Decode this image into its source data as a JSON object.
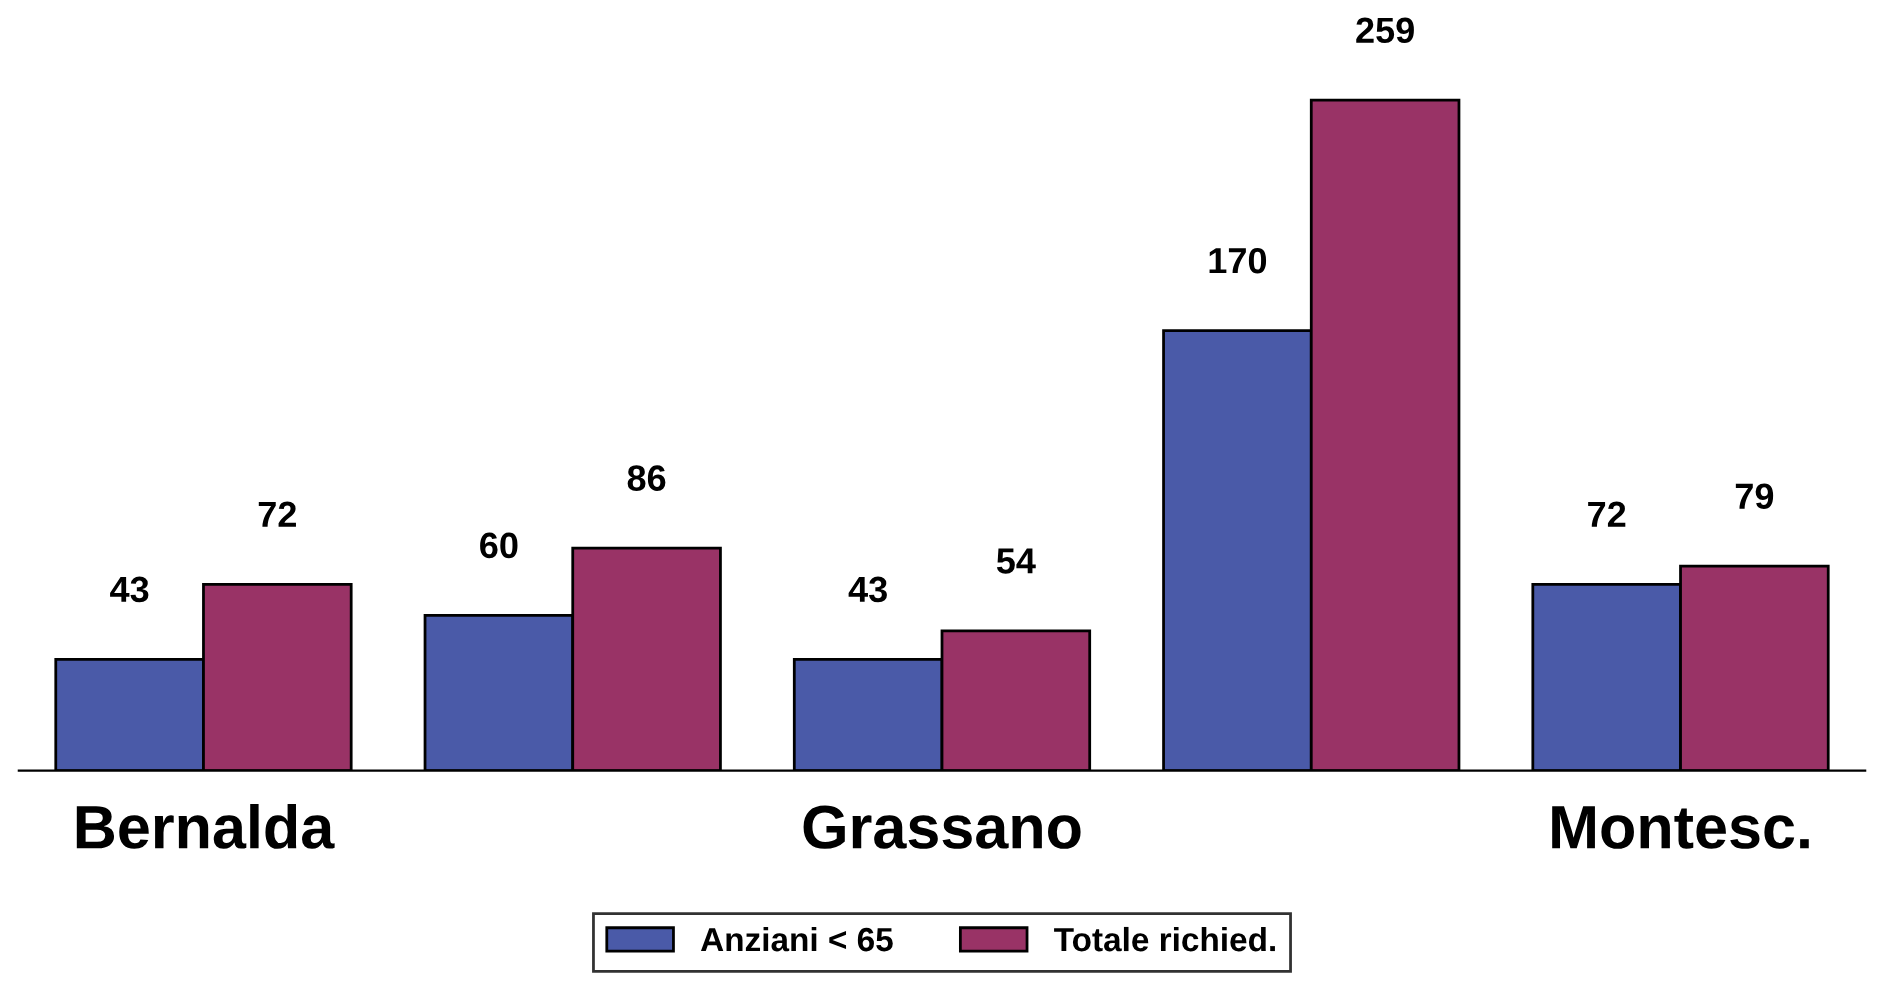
{
  "chart_data": {
    "type": "bar",
    "categories": [
      "Bernalda",
      null,
      "Grassano",
      null,
      "Montesc."
    ],
    "series": [
      {
        "name": "Anziani < 65",
        "color": "#4a5aa8",
        "values": [
          43,
          60,
          43,
          170,
          72
        ]
      },
      {
        "name": "Totale richied.",
        "color": "#993366",
        "values": [
          72,
          86,
          54,
          259,
          79
        ]
      }
    ],
    "data_labels": true,
    "legend": "bottom",
    "grid": false
  }
}
